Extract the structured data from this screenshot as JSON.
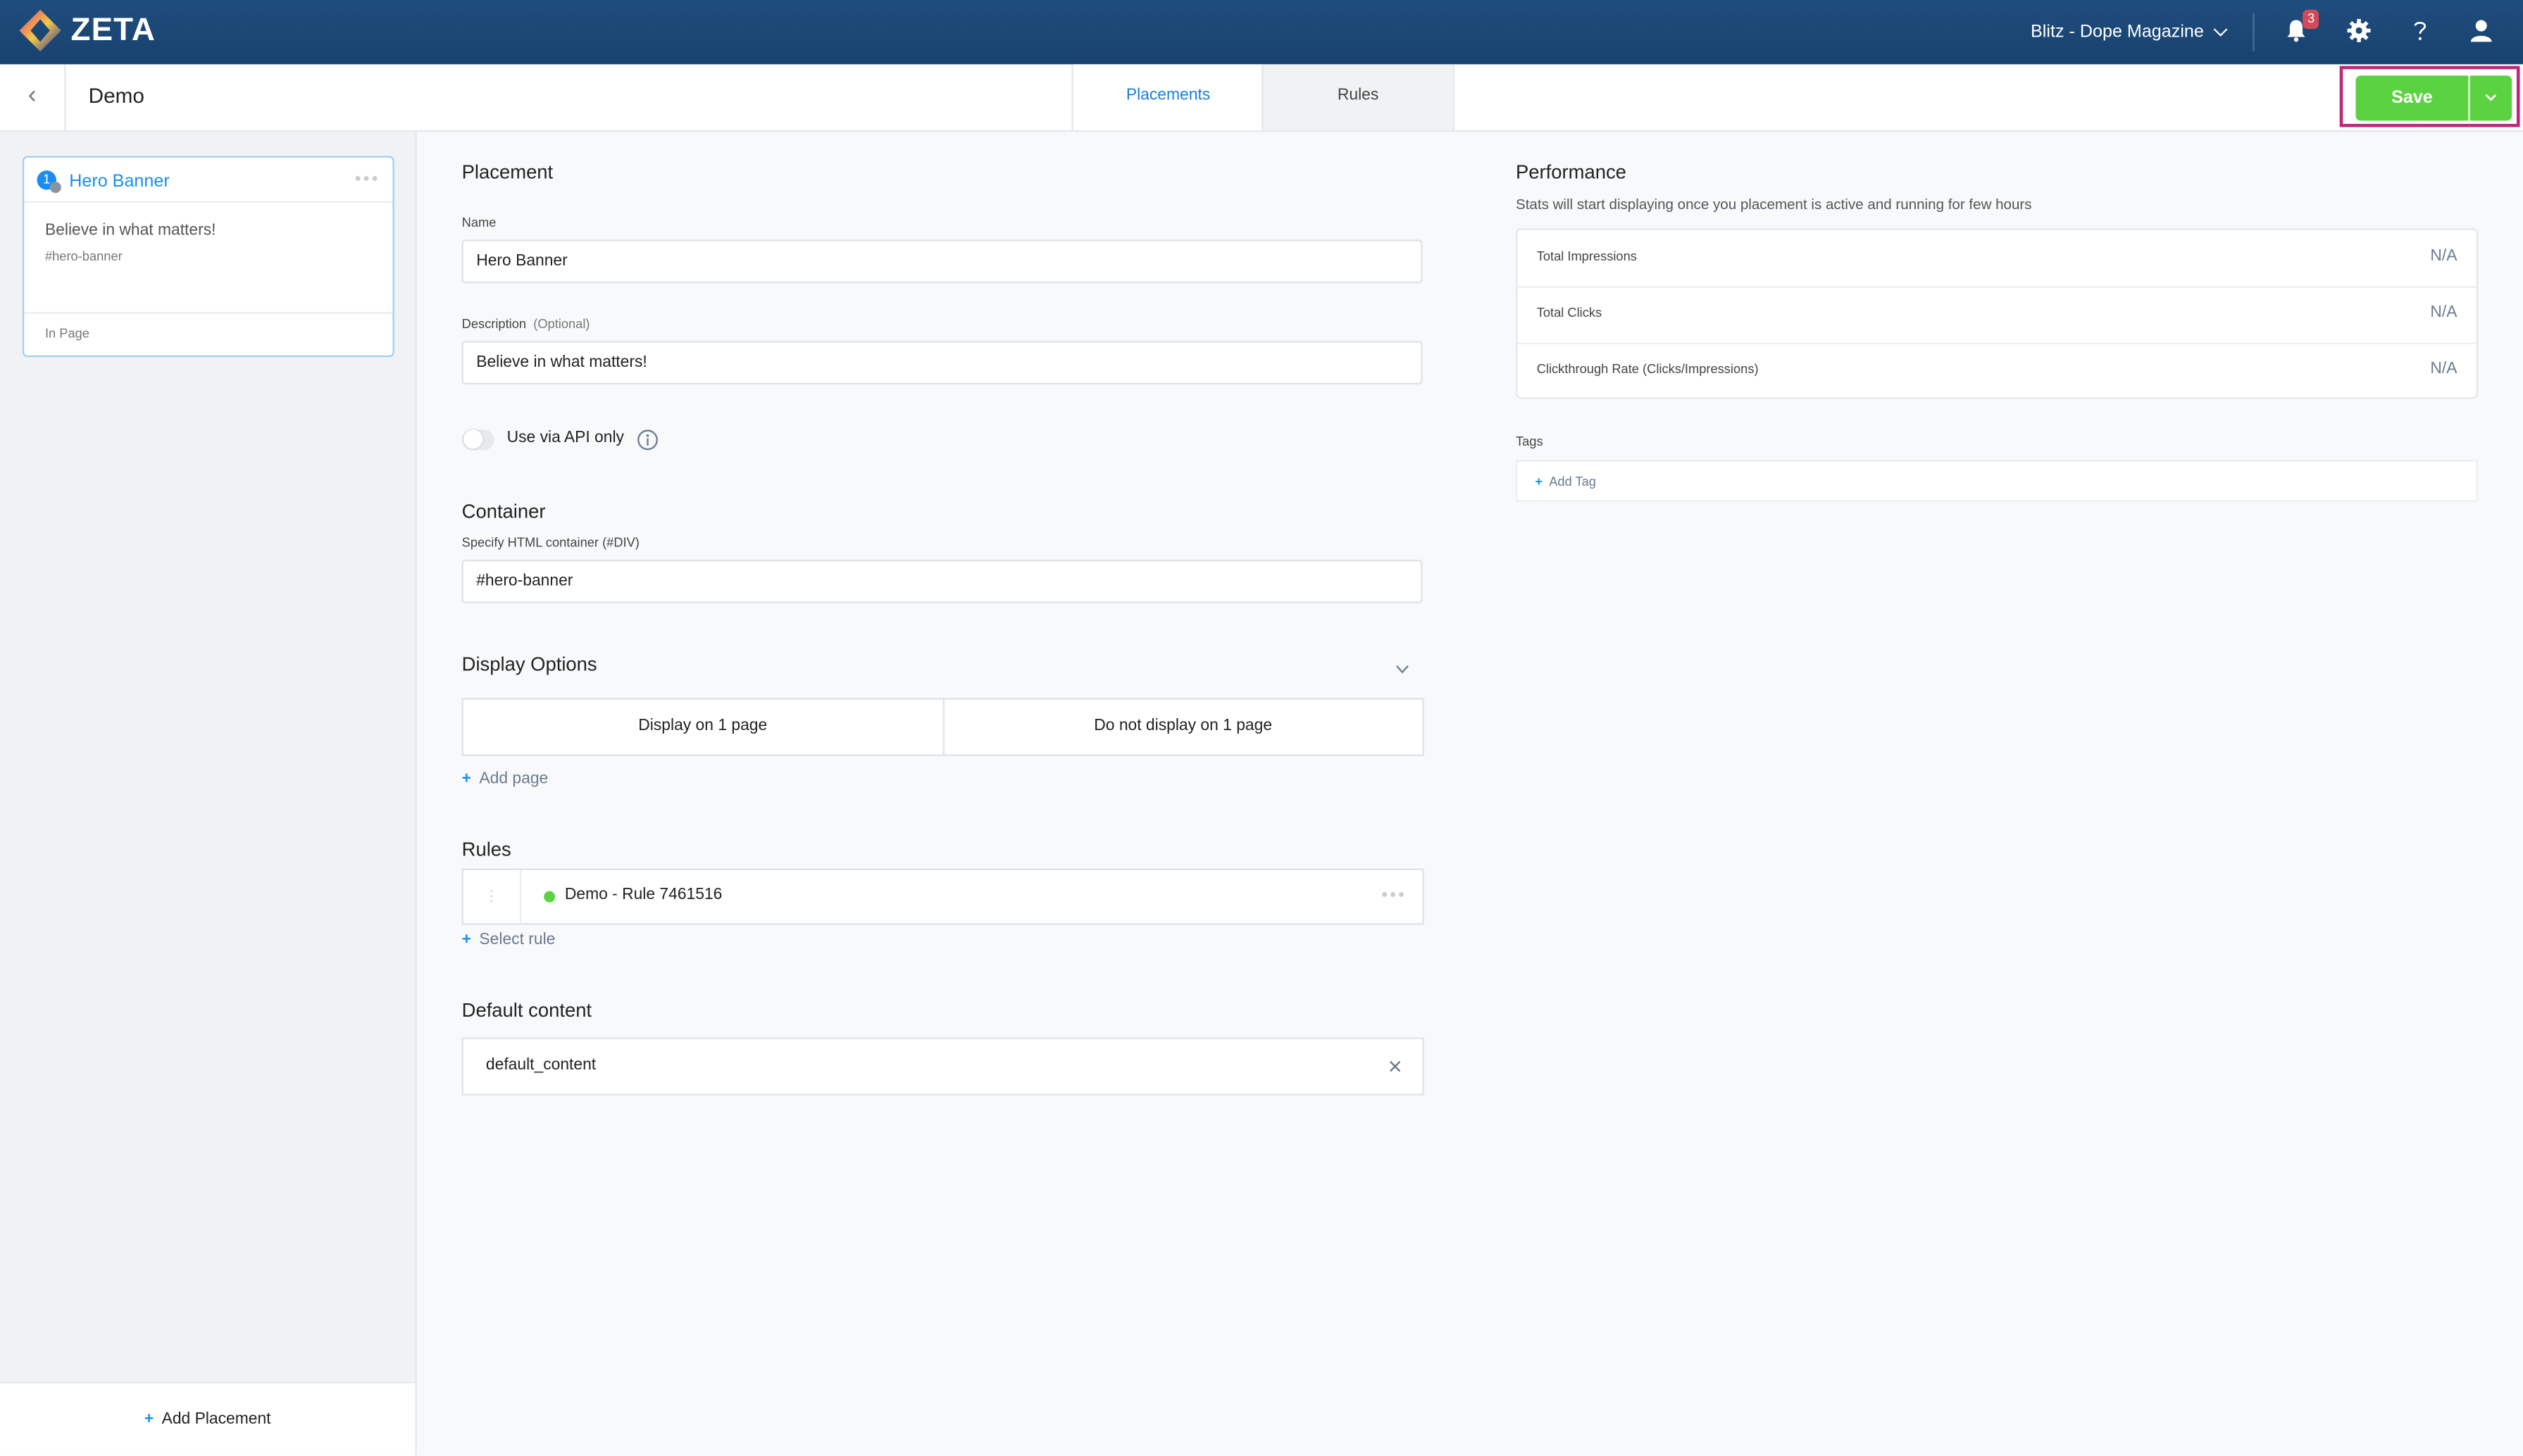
{
  "header": {
    "brand": "ZETA",
    "account": "Blitz - Dope Magazine",
    "notifications": "3",
    "icons": [
      "bell-icon",
      "gear-icon",
      "help-icon",
      "user-icon"
    ]
  },
  "subheader": {
    "title": "Demo",
    "tabs": [
      {
        "label": "Placements",
        "active": true
      },
      {
        "label": "Rules",
        "active": false
      }
    ],
    "save": "Save"
  },
  "sidebar": {
    "placements": [
      {
        "number": "1",
        "name": "Hero Banner",
        "description": "Believe in what matters!",
        "container": "#hero-banner",
        "type": "In Page"
      }
    ],
    "add": "Add Placement"
  },
  "placement": {
    "heading": "Placement",
    "name_label": "Name",
    "name_value": "Hero Banner",
    "desc_label": "Description",
    "desc_optional": "(Optional)",
    "desc_value": "Believe in what matters!",
    "api_label": "Use via API only",
    "api_on": false
  },
  "container": {
    "heading": "Container",
    "label": "Specify HTML container (#DIV)",
    "value": "#hero-banner"
  },
  "display": {
    "heading": "Display Options",
    "options": [
      "Display on 1 page",
      "Do not display on 1 page"
    ],
    "add": "Add page"
  },
  "rules": {
    "heading": "Rules",
    "items": [
      {
        "name": "Demo - Rule 7461516",
        "status_color": "#5bd340"
      }
    ],
    "add": "Select rule"
  },
  "default_content": {
    "heading": "Default content",
    "value": "default_content"
  },
  "performance": {
    "heading": "Performance",
    "note": "Stats will start displaying once you placement is active and running for few hours",
    "rows": [
      {
        "label": "Total Impressions",
        "value": "N/A"
      },
      {
        "label": "Total Clicks",
        "value": "N/A"
      },
      {
        "label": "Clickthrough Rate (Clicks/Impressions)",
        "value": "N/A"
      }
    ]
  },
  "tags": {
    "heading": "Tags",
    "add": "Add Tag"
  },
  "colors": {
    "header": "#1f4d7d",
    "accent": "#1a8ef0",
    "save": "#5bd340",
    "highlight": "#c0267a"
  }
}
